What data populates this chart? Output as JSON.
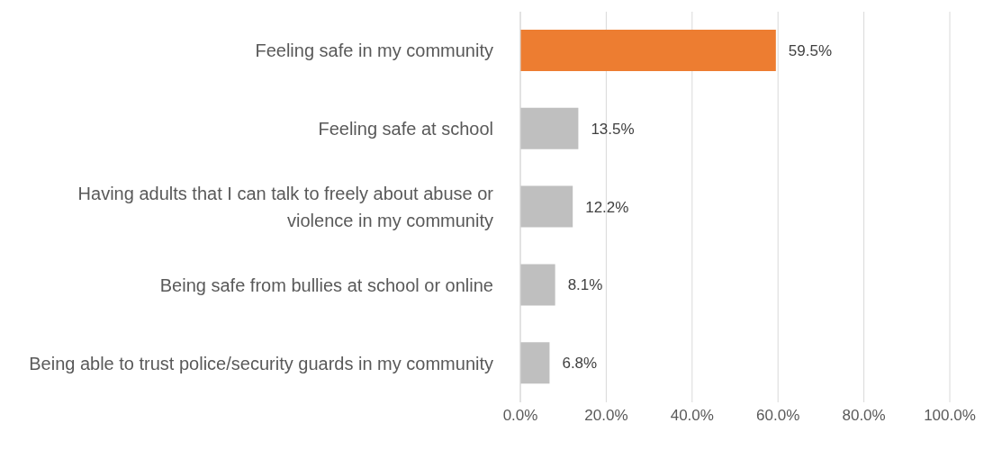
{
  "chart_data": {
    "type": "bar",
    "orientation": "horizontal",
    "categories": [
      "Feeling safe in my community",
      "Feeling safe at school",
      "Having adults that I can talk to freely about abuse or violence in my community",
      "Being safe from bullies at school or online",
      "Being able to trust police/security guards in my community"
    ],
    "values": [
      59.5,
      13.5,
      12.2,
      8.1,
      6.8
    ],
    "value_labels": [
      "59.5%",
      "13.5%",
      "12.2%",
      "8.1%",
      "6.8%"
    ],
    "colors": [
      "#ed7d31",
      "#bfbfbf",
      "#bfbfbf",
      "#bfbfbf",
      "#bfbfbf"
    ],
    "xlim": [
      0,
      100
    ],
    "xticks": [
      {
        "value": 0,
        "label": "0.0%"
      },
      {
        "value": 20,
        "label": "20.0%"
      },
      {
        "value": 40,
        "label": "40.0%"
      },
      {
        "value": 60,
        "label": "60.0%"
      },
      {
        "value": 80,
        "label": "80.0%"
      },
      {
        "value": 100,
        "label": "100.0%"
      }
    ],
    "grid": "x",
    "legend": false
  }
}
